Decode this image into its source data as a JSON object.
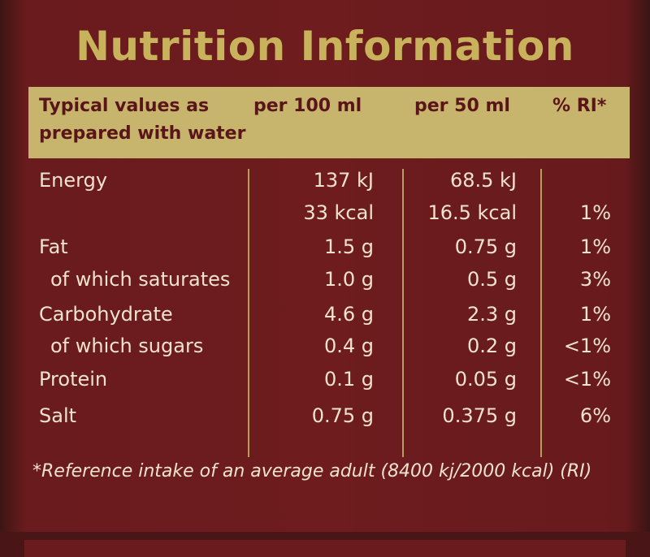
{
  "title": "Nutrition Information",
  "header": {
    "col0": "Typical values as",
    "col0_line2": "prepared with water",
    "col1": "per 100 ml",
    "col2": "per 50 ml",
    "col3": "% RI*"
  },
  "rows": [
    {
      "label": "Energy",
      "per100": "137 kJ",
      "per50": "68.5 kJ"
    },
    {
      "per100": "33 kcal",
      "per50": "16.5 kcal",
      "ri": "1%"
    },
    {
      "label": "Fat",
      "per100": "1.5 g",
      "per50": "0.75 g",
      "ri": "1%"
    },
    {
      "sub_label": "of which saturates",
      "per100": "1.0 g",
      "per50": "0.5 g",
      "ri": "3%"
    },
    {
      "label": "Carbohydrate",
      "per100": "4.6 g",
      "per50": "2.3 g",
      "ri": "1%"
    },
    {
      "sub_label": "of which sugars",
      "per100": "0.4 g",
      "per50": "0.2 g",
      "ri": "<1%"
    },
    {
      "label": "Protein",
      "per100": "0.1 g",
      "per50": "0.05 g",
      "ri": "<1%"
    },
    {
      "label": "Salt",
      "per100": "0.75 g",
      "per50": "0.375 g",
      "ri": "6%"
    }
  ],
  "footnote": "*Reference intake of an average adult (8400 kj/2000 kcal) (RI)"
}
